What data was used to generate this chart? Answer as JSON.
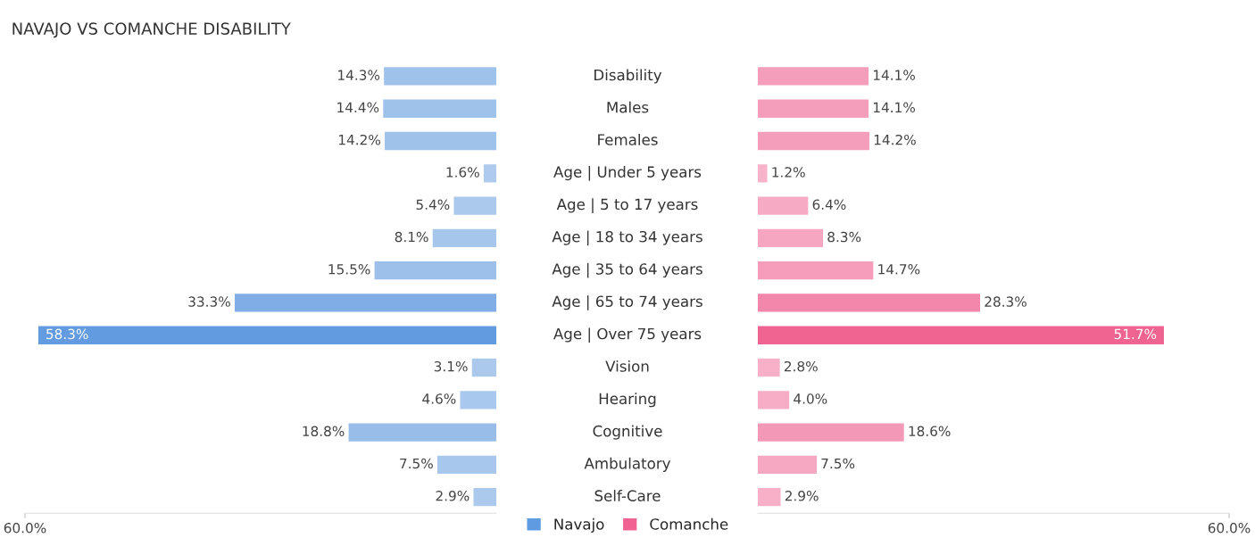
{
  "chart_data": [
    {
      "type": "bar",
      "orientation": "horizontal",
      "title": "NAVAJO VS COMANCHE DISABILITY",
      "categories": [
        "Disability",
        "Males",
        "Females",
        "Age | Under 5 years",
        "Age | 5 to 17 years",
        "Age | 18 to 34 years",
        "Age | 35 to 64 years",
        "Age | 65 to 74 years",
        "Age | Over 75 years",
        "Vision",
        "Hearing",
        "Cognitive",
        "Ambulatory",
        "Self-Care"
      ],
      "series": [
        {
          "name": "Navajo",
          "color": "#5e9be0",
          "values": [
            14.3,
            14.4,
            14.2,
            1.6,
            5.4,
            8.1,
            15.5,
            33.3,
            58.3,
            3.1,
            4.6,
            18.8,
            7.5,
            2.9
          ],
          "value_labels": [
            "14.3%",
            "14.4%",
            "14.2%",
            "1.6%",
            "5.4%",
            "8.1%",
            "15.5%",
            "33.3%",
            "58.3%",
            "3.1%",
            "4.6%",
            "18.8%",
            "7.5%",
            "2.9%"
          ],
          "colors": [
            "#9fc2ea",
            "#9fc2ea",
            "#9fc2ea",
            "#aecbee",
            "#aac9ed",
            "#a6c6ec",
            "#9cc0ea",
            "#80ade6",
            "#629be0",
            "#abc9ed",
            "#a9c8ed",
            "#98bde9",
            "#a7c7ec",
            "#abc9ed"
          ]
        }
      ],
      "xlim": [
        60,
        0
      ],
      "xticks": [
        {
          "value": 60,
          "label": "60.0%"
        }
      ],
      "grid": false,
      "legend": "bottom"
    },
    {
      "type": "bar",
      "orientation": "horizontal",
      "categories": [
        null,
        null,
        null,
        null,
        null,
        null,
        null,
        null,
        null,
        null,
        null,
        null,
        null,
        null
      ],
      "tick_labels": "x",
      "series": [
        {
          "name": "Comanche",
          "color": "#f06292",
          "values": [
            14.1,
            14.1,
            14.2,
            1.2,
            6.4,
            8.3,
            14.7,
            28.3,
            51.7,
            2.8,
            4.0,
            18.6,
            7.5,
            2.9
          ],
          "value_labels": [
            "14.1%",
            "14.1%",
            "14.2%",
            "1.2%",
            "6.4%",
            "8.3%",
            "14.7%",
            "28.3%",
            "51.7%",
            "2.8%",
            "4.0%",
            "18.6%",
            "7.5%",
            "2.9%"
          ],
          "colors": [
            "#f59ebb",
            "#f59ebb",
            "#f59ebb",
            "#f8b3ca",
            "#f7aac3",
            "#f6a6c0",
            "#f59dba",
            "#f287ab",
            "#f06492",
            "#f7b0c8",
            "#f7adc5",
            "#f498b7",
            "#f6a8c2",
            "#f7b0c8"
          ]
        }
      ],
      "xlim": [
        0,
        60
      ],
      "xticks": [
        {
          "value": 60,
          "label": "60.0%"
        }
      ],
      "grid": false
    }
  ]
}
